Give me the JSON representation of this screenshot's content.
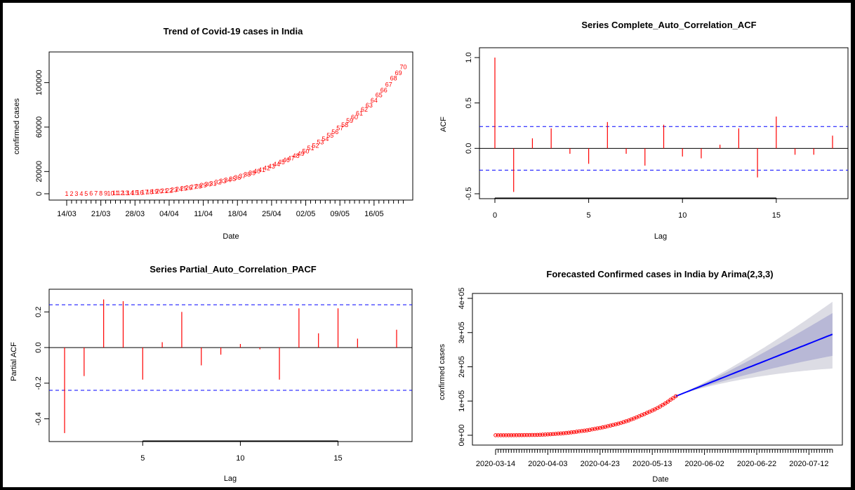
{
  "chart_data": [
    {
      "type": "scatter",
      "title": "Trend of Covid-19 cases in India",
      "xlabel": "Date",
      "ylabel": "confirmed cases",
      "ylim": [
        0,
        120000
      ],
      "yticks": [
        "0",
        "20000",
        "60000",
        "100000"
      ],
      "ytick_values": [
        0,
        20000,
        60000,
        100000
      ],
      "xtick_labels": [
        "14/03",
        "21/03",
        "28/03",
        "04/04",
        "11/04",
        "18/04",
        "25/04",
        "02/05",
        "09/05",
        "16/05"
      ],
      "point_label_color": "#ff0000",
      "point_labels": [
        1,
        2,
        3,
        4,
        5,
        6,
        7,
        8,
        9,
        10,
        11,
        12,
        13,
        14,
        15,
        16,
        17,
        18,
        19,
        20,
        21,
        22,
        23,
        24,
        25,
        26,
        27,
        28,
        29,
        30,
        31,
        32,
        33,
        34,
        35,
        36,
        37,
        38,
        39,
        40,
        41,
        42,
        43,
        44,
        45,
        46,
        47,
        48,
        49,
        50,
        51,
        52,
        53,
        54,
        55,
        56,
        57,
        58,
        59,
        60,
        61,
        62,
        63,
        64,
        65,
        66,
        67,
        68,
        69,
        70
      ],
      "values": [
        100,
        110,
        120,
        140,
        150,
        170,
        220,
        270,
        330,
        420,
        480,
        560,
        650,
        730,
        880,
        1000,
        1250,
        1550,
        1850,
        2100,
        2550,
        3000,
        3600,
        4100,
        4800,
        5300,
        5900,
        6700,
        7600,
        8400,
        9200,
        10300,
        11400,
        12400,
        13400,
        14400,
        15700,
        17300,
        18600,
        20200,
        21400,
        23000,
        24500,
        26500,
        28400,
        30200,
        32000,
        34000,
        36000,
        38300,
        41000,
        43300,
        46400,
        49200,
        52300,
        55500,
        58900,
        62000,
        65600,
        69000,
        72200,
        75800,
        79600,
        84000,
        88600,
        93100,
        98200,
        104000,
        108500,
        114000
      ]
    },
    {
      "type": "bar",
      "title": "Series  Complete_Auto_Correlation_ACF",
      "xlabel": "Lag",
      "ylabel": "ACF",
      "ylim": [
        -0.5,
        1.0
      ],
      "yticks": [
        "-0.5",
        "0.0",
        "0.5",
        "1.0"
      ],
      "ytick_values": [
        -0.5,
        0.0,
        0.5,
        1.0
      ],
      "xticks": [
        "0",
        "5",
        "10",
        "15"
      ],
      "xtick_values": [
        0,
        5,
        10,
        15
      ],
      "confidence_bound": 0.24,
      "bar_color": "#ff0000",
      "ci_color": "#0000ff",
      "lags": [
        0,
        1,
        2,
        3,
        4,
        5,
        6,
        7,
        8,
        9,
        10,
        11,
        12,
        13,
        14,
        15,
        16,
        17,
        18
      ],
      "values": [
        1.0,
        -0.48,
        0.11,
        0.22,
        -0.06,
        -0.17,
        0.29,
        -0.06,
        -0.19,
        0.26,
        -0.09,
        -0.11,
        0.04,
        0.22,
        -0.32,
        0.35,
        -0.07,
        -0.07,
        0.14
      ]
    },
    {
      "type": "bar",
      "title": "Series  Partial_Auto_Correlation_PACF",
      "xlabel": "Lag",
      "ylabel": "Partial ACF",
      "ylim": [
        -0.5,
        0.28
      ],
      "yticks": [
        "-0.4",
        "-0.2",
        "0.0",
        "0.2"
      ],
      "ytick_values": [
        -0.4,
        -0.2,
        0.0,
        0.2
      ],
      "xticks": [
        "5",
        "10",
        "15"
      ],
      "xtick_values": [
        5,
        10,
        15
      ],
      "confidence_bound": 0.24,
      "bar_color": "#ff0000",
      "ci_color": "#0000ff",
      "lags": [
        1,
        2,
        3,
        4,
        5,
        6,
        7,
        8,
        9,
        10,
        11,
        12,
        13,
        14,
        15,
        16,
        17,
        18
      ],
      "values": [
        -0.48,
        -0.16,
        0.27,
        0.26,
        -0.18,
        0.03,
        0.2,
        -0.1,
        -0.04,
        0.02,
        -0.01,
        -0.18,
        0.22,
        0.08,
        0.22,
        0.05,
        0.0,
        0.1
      ]
    },
    {
      "type": "line",
      "title": "Forecasted Confirmed cases in India by Arima(2,3,3)",
      "xlabel": "Date",
      "ylabel": "confirmed cases",
      "ylim": [
        0,
        400000
      ],
      "yticks": [
        "0e+00",
        "1e+05",
        "2e+05",
        "3e+05",
        "4e+05"
      ],
      "ytick_values": [
        0,
        100000,
        200000,
        300000,
        400000
      ],
      "xtick_labels": [
        "2020-03-14",
        "2020-04-03",
        "2020-04-23",
        "2020-05-13",
        "2020-06-02",
        "2020-06-22",
        "2020-07-12"
      ],
      "observed_color": "#ff0000",
      "forecast_color": "#0000ff",
      "band80_color": "#b8b8d6",
      "band95_color": "#dcdce4",
      "observed_days": 70,
      "forecast_days": 60,
      "observed_values": [
        100,
        110,
        120,
        140,
        150,
        170,
        220,
        270,
        330,
        420,
        480,
        560,
        650,
        730,
        880,
        1000,
        1250,
        1550,
        1850,
        2100,
        2550,
        3000,
        3600,
        4100,
        4800,
        5300,
        5900,
        6700,
        7600,
        8400,
        9200,
        10300,
        11400,
        12400,
        13400,
        14400,
        15700,
        17300,
        18600,
        20200,
        21400,
        23000,
        24500,
        26500,
        28400,
        30200,
        32000,
        34000,
        36000,
        38300,
        41000,
        43300,
        46400,
        49200,
        52300,
        55500,
        58900,
        62000,
        65600,
        69000,
        72200,
        75800,
        79600,
        84000,
        88600,
        93100,
        98200,
        104000,
        108500,
        114000
      ],
      "forecast_end_value": 295000,
      "upper95_end": 390000,
      "lower95_end": 195000,
      "upper80_end": 357000,
      "lower80_end": 232000
    }
  ]
}
